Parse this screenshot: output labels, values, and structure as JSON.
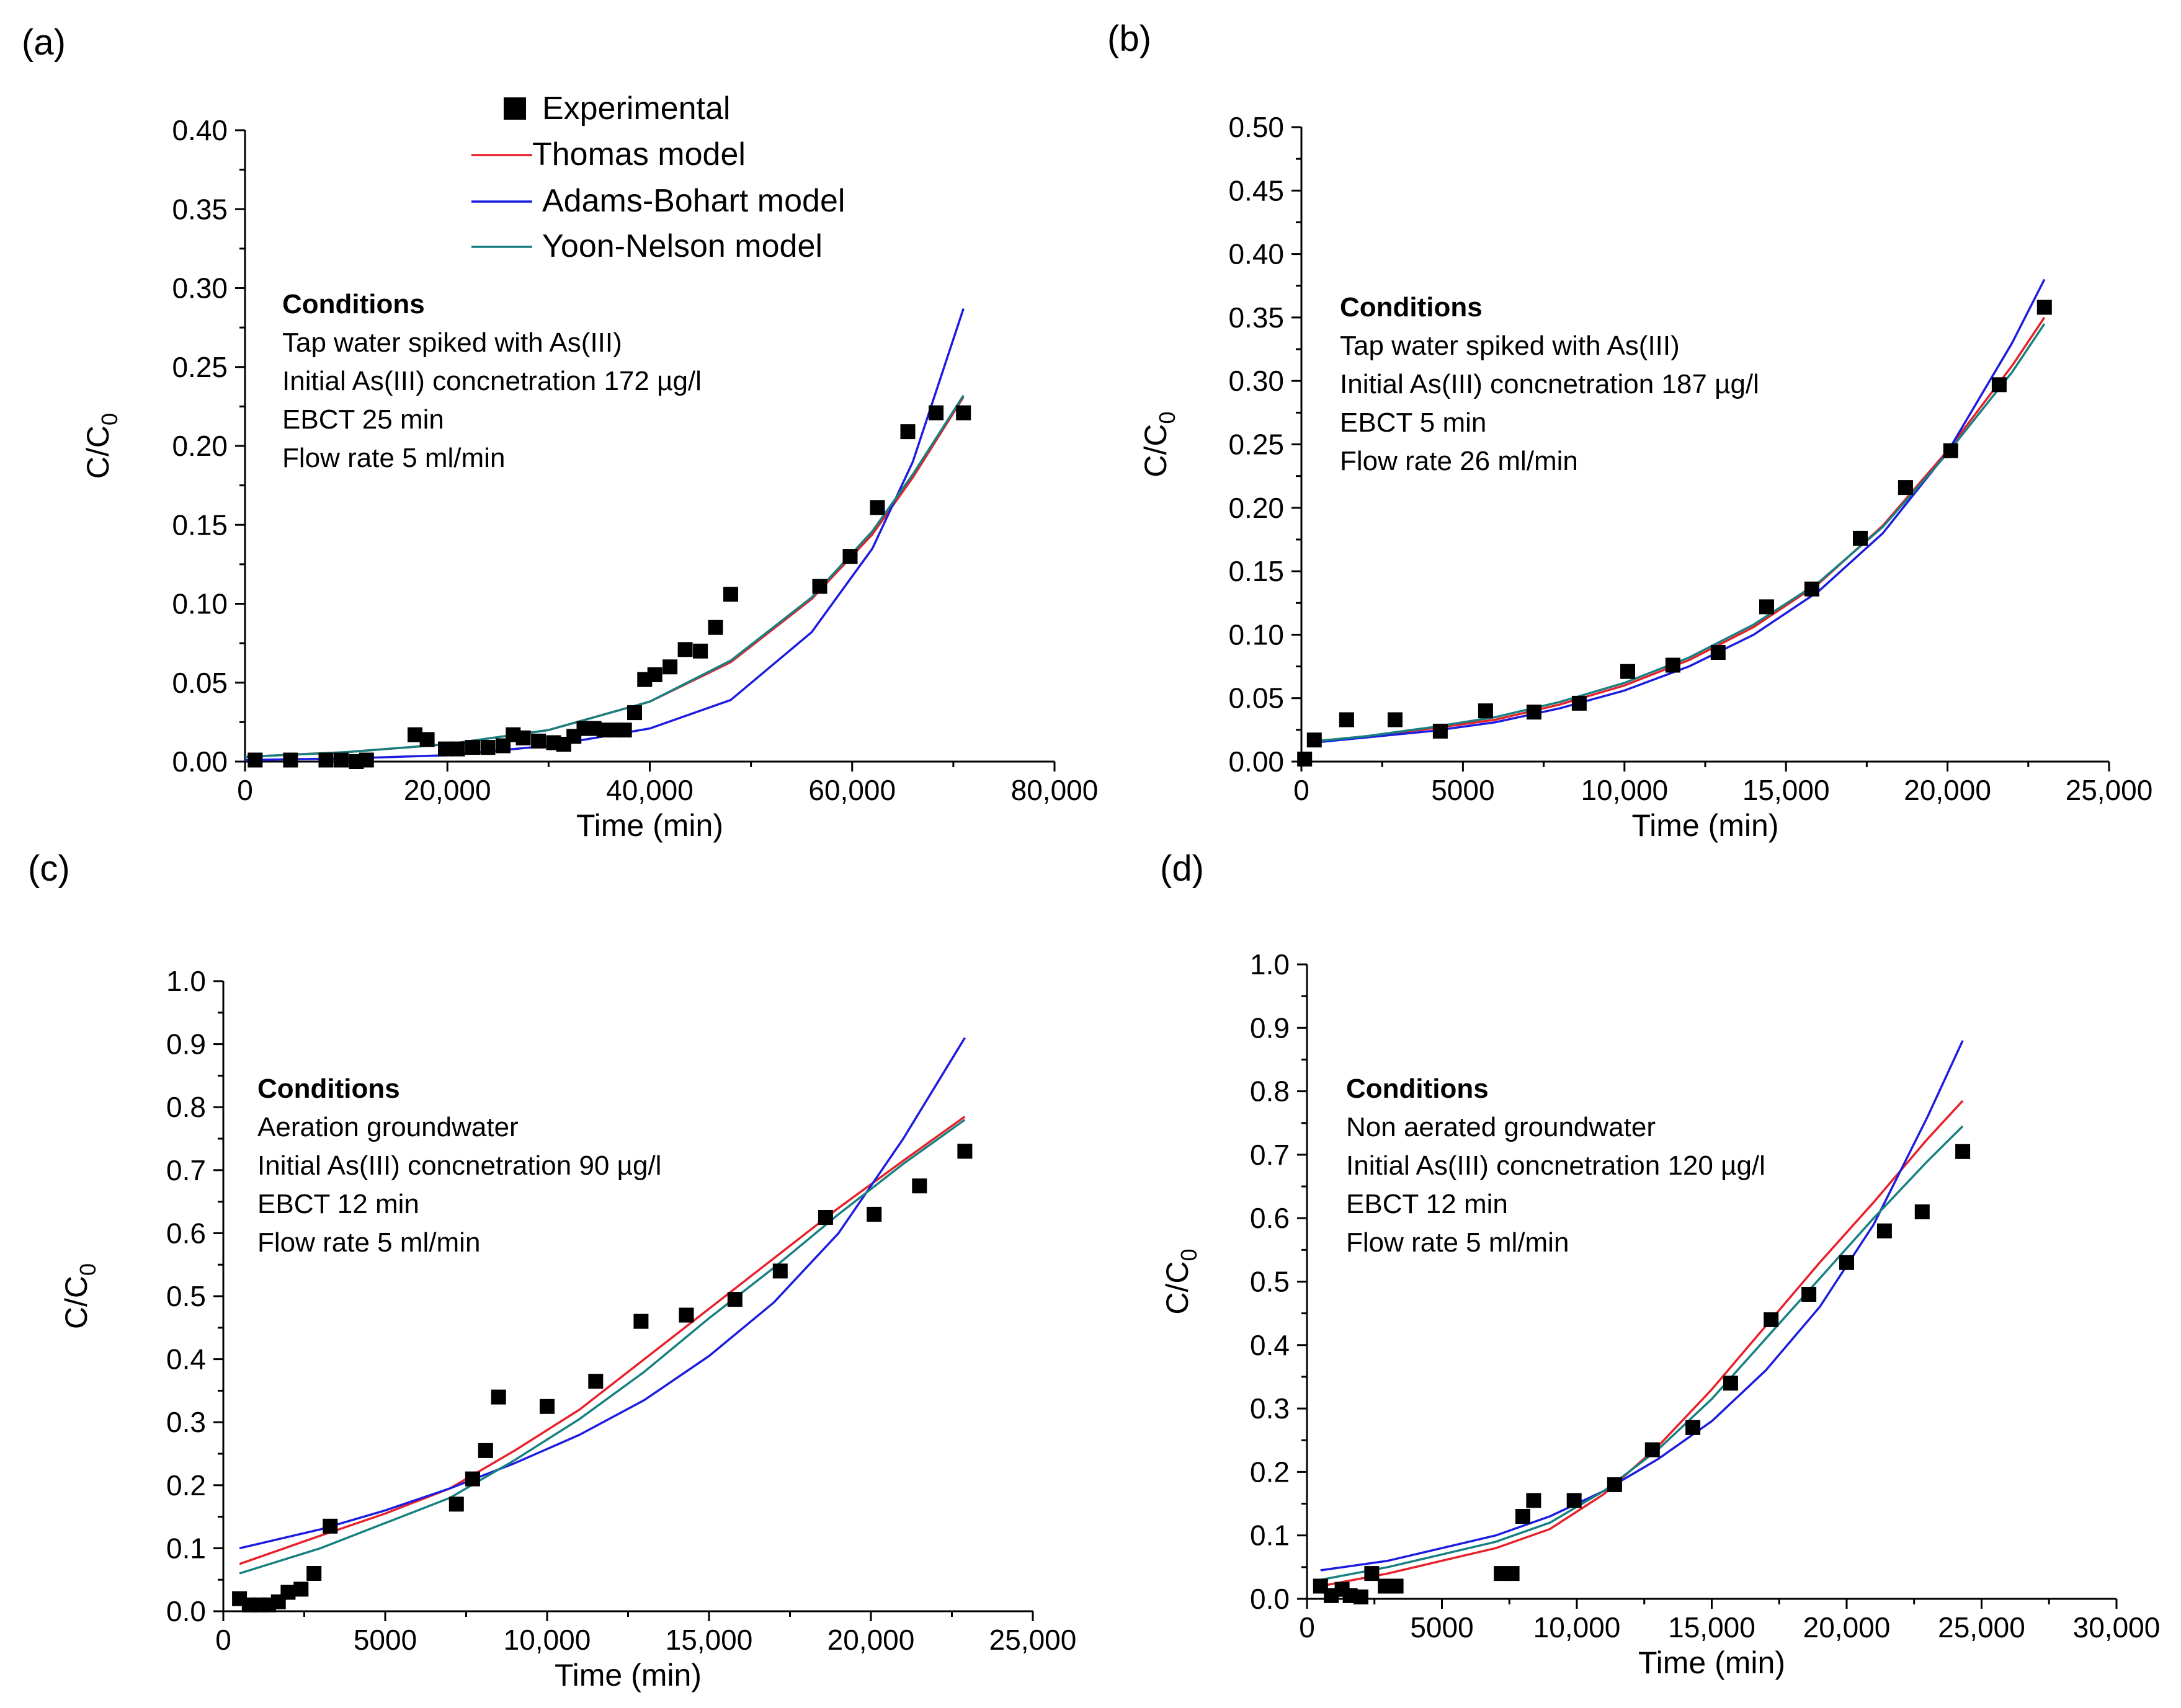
{
  "colors": {
    "thomas": "#e8202a",
    "adams_bohart": "#1c1ce0",
    "yoon_nelson": "#178080",
    "experimental": "#000000"
  },
  "legend": {
    "experimental": "Experimental",
    "thomas": "Thomas model",
    "adams_bohart": "Adams-Bohart model",
    "yoon_nelson": "Yoon-Nelson model"
  },
  "chart_data": [
    {
      "type": "scatter",
      "panel": "(a)",
      "xlabel": "Time (min)",
      "ylabel": "C/C0",
      "xlim": [
        0,
        80000
      ],
      "ylim": [
        0,
        0.4
      ],
      "x_ticks": [
        "0",
        "20,000",
        "40,000",
        "60,000",
        "80,000"
      ],
      "y_ticks": [
        "0.00",
        "0.05",
        "0.10",
        "0.15",
        "0.20",
        "0.25",
        "0.30",
        "0.35",
        "0.40"
      ],
      "conditions": {
        "title": "Conditions",
        "lines": [
          "Tap water spiked with As(III)",
          "Initial As(III) concnetration 172 µg/l",
          "EBCT 25 min",
          "Flow rate 5 ml/min"
        ]
      },
      "experimental": {
        "x": [
          1000,
          4500,
          8000,
          9500,
          11000,
          12000,
          16800,
          18000,
          19800,
          21000,
          22500,
          24000,
          25500,
          26500,
          27500,
          29000,
          30500,
          31500,
          32500,
          33500,
          34500,
          35500,
          36500,
          37500,
          38500,
          39500,
          40500,
          42000,
          43500,
          45000,
          46500,
          48000,
          56800,
          59800,
          62500,
          65500,
          68300,
          71000
        ],
        "y": [
          0.001,
          0.001,
          0.001,
          0.001,
          0.0,
          0.001,
          0.017,
          0.014,
          0.008,
          0.008,
          0.009,
          0.009,
          0.01,
          0.017,
          0.015,
          0.013,
          0.012,
          0.011,
          0.016,
          0.021,
          0.021,
          0.02,
          0.02,
          0.02,
          0.031,
          0.052,
          0.055,
          0.06,
          0.071,
          0.07,
          0.085,
          0.106,
          0.111,
          0.13,
          0.161,
          0.209,
          0.221,
          0.221
        ]
      },
      "series": [
        {
          "name": "Thomas model",
          "x": [
            0,
            10000,
            20000,
            30000,
            40000,
            48000,
            56000,
            62000,
            66000,
            71000
          ],
          "y": [
            0.003,
            0.006,
            0.011,
            0.02,
            0.038,
            0.063,
            0.103,
            0.144,
            0.18,
            0.231
          ]
        },
        {
          "name": "Adams-Bohart model",
          "x": [
            0,
            10000,
            20000,
            30000,
            40000,
            48000,
            56000,
            62000,
            66000,
            71000
          ],
          "y": [
            0.001,
            0.002,
            0.004,
            0.01,
            0.021,
            0.039,
            0.082,
            0.135,
            0.19,
            0.287
          ]
        },
        {
          "name": "Yoon-Nelson model",
          "x": [
            0,
            10000,
            20000,
            30000,
            40000,
            48000,
            56000,
            62000,
            66000,
            71000
          ],
          "y": [
            0.003,
            0.006,
            0.011,
            0.02,
            0.038,
            0.064,
            0.104,
            0.146,
            0.182,
            0.232
          ]
        }
      ]
    },
    {
      "type": "scatter",
      "panel": "(b)",
      "xlabel": "Time (min)",
      "ylabel": "C/C0",
      "xlim": [
        0,
        25000
      ],
      "ylim": [
        0,
        0.5
      ],
      "x_ticks": [
        "0",
        "5000",
        "10,000",
        "15,000",
        "20,000",
        "25,000"
      ],
      "y_ticks": [
        "0.00",
        "0.05",
        "0.10",
        "0.15",
        "0.20",
        "0.25",
        "0.30",
        "0.35",
        "0.40",
        "0.45",
        "0.50"
      ],
      "conditions": {
        "title": "Conditions",
        "lines": [
          "Tap water spiked with As(III)",
          "Initial As(III) concnetration 187 µg/l",
          "EBCT 5 min",
          "Flow rate 26 ml/min"
        ]
      },
      "experimental": {
        "x": [
          100,
          400,
          1400,
          2900,
          4300,
          5700,
          7200,
          8600,
          10100,
          11500,
          12900,
          14400,
          15800,
          17300,
          18700,
          20100,
          21600,
          23000
        ],
        "y": [
          0.002,
          0.017,
          0.033,
          0.033,
          0.024,
          0.04,
          0.039,
          0.046,
          0.071,
          0.076,
          0.086,
          0.122,
          0.136,
          0.176,
          0.216,
          0.245,
          0.297,
          0.358
        ]
      },
      "series": [
        {
          "name": "Thomas model",
          "x": [
            400,
            2000,
            4000,
            6000,
            8000,
            10000,
            12000,
            14000,
            16000,
            18000,
            20000,
            22000,
            23000
          ],
          "y": [
            0.016,
            0.02,
            0.026,
            0.033,
            0.045,
            0.06,
            0.08,
            0.106,
            0.14,
            0.186,
            0.245,
            0.312,
            0.35
          ]
        },
        {
          "name": "Adams-Bohart model",
          "x": [
            400,
            2000,
            4000,
            6000,
            8000,
            10000,
            12000,
            14000,
            16000,
            18000,
            20000,
            22000,
            23000
          ],
          "y": [
            0.015,
            0.019,
            0.024,
            0.031,
            0.042,
            0.056,
            0.075,
            0.1,
            0.134,
            0.18,
            0.244,
            0.33,
            0.38
          ]
        },
        {
          "name": "Yoon-Nelson model",
          "x": [
            400,
            2000,
            4000,
            6000,
            8000,
            10000,
            12000,
            14000,
            16000,
            18000,
            20000,
            22000,
            23000
          ],
          "y": [
            0.016,
            0.02,
            0.027,
            0.035,
            0.047,
            0.062,
            0.082,
            0.108,
            0.141,
            0.185,
            0.243,
            0.307,
            0.345
          ]
        }
      ]
    },
    {
      "type": "scatter",
      "panel": "(c)",
      "xlabel": "Time (min)",
      "ylabel": "C/C0",
      "xlim": [
        0,
        25000
      ],
      "ylim": [
        0,
        1.0
      ],
      "x_ticks": [
        "0",
        "5000",
        "10,000",
        "15,000",
        "20,000",
        "25,000"
      ],
      "y_ticks": [
        "0.0",
        "0.1",
        "0.2",
        "0.3",
        "0.4",
        "0.5",
        "0.6",
        "0.7",
        "0.8",
        "0.9",
        "1.0"
      ],
      "conditions": {
        "title": "Conditions",
        "lines": [
          "Aeration groundwater",
          "Initial As(III) concnetration 90 µg/l",
          "EBCT 12 min",
          "Flow rate 5 ml/min"
        ]
      },
      "experimental": {
        "x": [
          500,
          800,
          1100,
          1400,
          1700,
          2000,
          2400,
          2800,
          3300,
          7200,
          7700,
          8100,
          8500,
          10000,
          11500,
          12900,
          14300,
          15800,
          17200,
          18600,
          20100,
          21500,
          22900
        ],
        "y": [
          0.02,
          0.01,
          0.01,
          0.01,
          0.015,
          0.03,
          0.035,
          0.06,
          0.135,
          0.17,
          0.21,
          0.255,
          0.34,
          0.325,
          0.365,
          0.46,
          0.47,
          0.495,
          0.54,
          0.625,
          0.63,
          0.675,
          0.73
        ]
      },
      "series": [
        {
          "name": "Thomas model",
          "x": [
            500,
            3000,
            5000,
            7000,
            9000,
            11000,
            13000,
            15000,
            17000,
            19000,
            21000,
            22900
          ],
          "y": [
            0.075,
            0.12,
            0.155,
            0.195,
            0.255,
            0.32,
            0.4,
            0.48,
            0.56,
            0.64,
            0.715,
            0.785
          ]
        },
        {
          "name": "Adams-Bohart model",
          "x": [
            500,
            3000,
            5000,
            7000,
            9000,
            11000,
            13000,
            15000,
            17000,
            19000,
            21000,
            22900
          ],
          "y": [
            0.1,
            0.13,
            0.16,
            0.195,
            0.235,
            0.28,
            0.335,
            0.405,
            0.49,
            0.6,
            0.75,
            0.91
          ]
        },
        {
          "name": "Yoon-Nelson model",
          "x": [
            500,
            3000,
            5000,
            7000,
            9000,
            11000,
            13000,
            15000,
            17000,
            19000,
            21000,
            22900
          ],
          "y": [
            0.06,
            0.1,
            0.14,
            0.18,
            0.24,
            0.305,
            0.38,
            0.465,
            0.545,
            0.63,
            0.71,
            0.78
          ]
        }
      ]
    },
    {
      "type": "scatter",
      "panel": "(d)",
      "xlabel": "Time (min)",
      "ylabel": "C/C0",
      "xlim": [
        0,
        30000
      ],
      "ylim": [
        0,
        1.0
      ],
      "x_ticks": [
        "0",
        "5000",
        "10,000",
        "15,000",
        "20,000",
        "25,000",
        "30,000"
      ],
      "y_ticks": [
        "0.0",
        "0.1",
        "0.2",
        "0.3",
        "0.4",
        "0.5",
        "0.6",
        "0.7",
        "0.8",
        "0.9",
        "1.0"
      ],
      "conditions": {
        "title": "Conditions",
        "lines": [
          "Non aerated groundwater",
          "Initial As(III) concnetration 120 µg/l",
          "EBCT 12 min",
          "Flow rate 5 ml/min"
        ]
      },
      "experimental": {
        "x": [
          500,
          900,
          1300,
          1600,
          2000,
          2400,
          2900,
          3300,
          7200,
          7600,
          8000,
          8400,
          9900,
          11400,
          12800,
          14300,
          15700,
          17200,
          18600,
          20000,
          21400,
          22800,
          24300
        ],
        "y": [
          0.02,
          0.005,
          0.015,
          0.005,
          0.003,
          0.04,
          0.02,
          0.02,
          0.04,
          0.04,
          0.13,
          0.155,
          0.155,
          0.18,
          0.235,
          0.27,
          0.34,
          0.44,
          0.48,
          0.53,
          0.58,
          0.61,
          0.705
        ]
      },
      "series": [
        {
          "name": "Thomas model",
          "x": [
            500,
            3000,
            5000,
            7000,
            9000,
            11000,
            13000,
            15000,
            17000,
            19000,
            21000,
            23000,
            24300
          ],
          "y": [
            0.02,
            0.04,
            0.06,
            0.08,
            0.11,
            0.165,
            0.24,
            0.33,
            0.43,
            0.53,
            0.625,
            0.725,
            0.785
          ]
        },
        {
          "name": "Adams-Bohart model",
          "x": [
            500,
            3000,
            5000,
            7000,
            9000,
            11000,
            13000,
            15000,
            17000,
            19000,
            21000,
            23000,
            24300
          ],
          "y": [
            0.045,
            0.06,
            0.08,
            0.1,
            0.13,
            0.17,
            0.22,
            0.28,
            0.36,
            0.46,
            0.59,
            0.76,
            0.88
          ]
        },
        {
          "name": "Yoon-Nelson model",
          "x": [
            500,
            3000,
            5000,
            7000,
            9000,
            11000,
            13000,
            15000,
            17000,
            19000,
            21000,
            23000,
            24300
          ],
          "y": [
            0.03,
            0.05,
            0.07,
            0.09,
            0.12,
            0.17,
            0.235,
            0.315,
            0.41,
            0.505,
            0.6,
            0.69,
            0.745
          ]
        }
      ]
    }
  ]
}
